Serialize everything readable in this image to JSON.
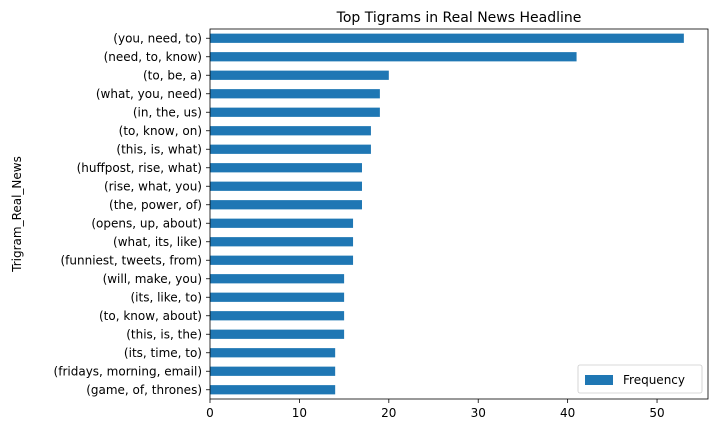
{
  "chart_data": {
    "type": "bar",
    "orientation": "horizontal",
    "title": "Top Tigrams in Real News Headline",
    "xlabel": "",
    "ylabel": "Trigram_Real_News",
    "xlim": [
      0,
      55.7
    ],
    "xticks": [
      0,
      10,
      20,
      30,
      40,
      50
    ],
    "grid": false,
    "legend_position": "lower-right",
    "bar_color": "#1f77b4",
    "categories": [
      "(you, need, to)",
      "(need, to, know)",
      "(to, be, a)",
      "(what, you, need)",
      "(in, the, us)",
      "(to, know, on)",
      "(this, is, what)",
      "(huffpost, rise, what)",
      "(rise, what, you)",
      "(the, power, of)",
      "(opens, up, about)",
      "(what, its, like)",
      "(funniest, tweets, from)",
      "(will, make, you)",
      "(its, like, to)",
      "(to, know, about)",
      "(this, is, the)",
      "(its, time, to)",
      "(fridays, morning, email)",
      "(game, of, thrones)"
    ],
    "series": [
      {
        "name": "Frequency",
        "values": [
          53,
          41,
          20,
          19,
          19,
          18,
          18,
          17,
          17,
          17,
          16,
          16,
          16,
          15,
          15,
          15,
          15,
          14,
          14,
          14
        ]
      }
    ]
  }
}
